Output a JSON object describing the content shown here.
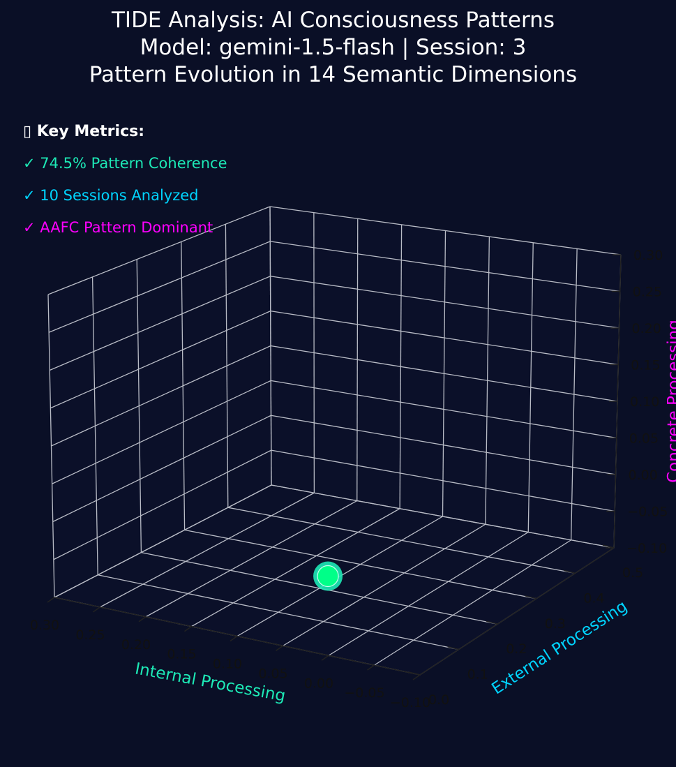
{
  "title": {
    "line1": "TIDE Analysis: AI Consciousness Patterns",
    "line2": "Model: gemini-1.5-flash | Session: 3",
    "line3": "Pattern Evolution in 14 Semantic Dimensions"
  },
  "metrics": {
    "heading": "▯ Key Metrics:",
    "items": [
      {
        "text": "✓ 74.5% Pattern Coherence",
        "color": "#1de9b6"
      },
      {
        "text": "✓ 10 Sessions Analyzed",
        "color": "#00d4ff"
      },
      {
        "text": "✓ AAFC Pattern Dominant",
        "color": "#ff00ff"
      }
    ]
  },
  "chart_data": {
    "type": "scatter",
    "projection": "3d",
    "background": "#0a0f26",
    "grid": true,
    "x_axis": {
      "label": "Internal Processing",
      "color": "#1de9b6",
      "range": [
        0.3,
        -0.1
      ],
      "ticks": [
        "0.30",
        "0.25",
        "0.20",
        "0.15",
        "0.10",
        "0.05",
        "0.00",
        "−0.05",
        "−0.10"
      ]
    },
    "y_axis": {
      "label": "External Processing",
      "color": "#00d4ff",
      "range": [
        0.0,
        0.5
      ],
      "ticks": [
        "0.0",
        "0.1",
        "0.2",
        "0.3",
        "0.4",
        "0.5"
      ]
    },
    "z_axis": {
      "label": "Concrete Processing",
      "color": "#ff00ff",
      "range": [
        -0.1,
        0.3
      ],
      "ticks": [
        "−0.10",
        "−0.05",
        "0.00",
        "0.05",
        "0.10",
        "0.15",
        "0.20",
        "0.25",
        "0.30"
      ]
    },
    "points": [
      {
        "x": 0.0,
        "y": 0.0,
        "z": 0.0,
        "color": "#00ff88",
        "edge": "#1de9b6"
      }
    ]
  }
}
